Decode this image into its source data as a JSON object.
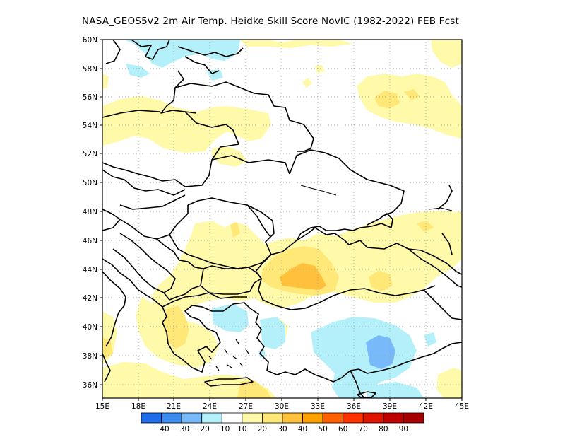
{
  "title": "NASA_GEOS5v2  2m Air Temp. Heidke Skill Score NovIC (1982-2022) FEB Fcst",
  "lat_labels": [
    "60N",
    "58N",
    "56N",
    "54N",
    "52N",
    "50N",
    "48N",
    "46N",
    "44N",
    "42N",
    "40N",
    "38N",
    "36N"
  ],
  "lon_labels": [
    "15E",
    "18E",
    "21E",
    "24E",
    "27E",
    "30E",
    "33E",
    "36E",
    "39E",
    "42E",
    "45E"
  ],
  "colorbar": {
    "labels": [
      "-40",
      "-30",
      "-20",
      "-10",
      "10",
      "20",
      "30",
      "40",
      "50",
      "60",
      "70",
      "80",
      "90"
    ],
    "colors": [
      "#1e6eeb",
      "#3c8cf0",
      "#78b9fa",
      "#b4f0fa",
      "#ffffff",
      "#fffaaa",
      "#ffe878",
      "#ffc03c",
      "#ffa000",
      "#ff6000",
      "#ff3200",
      "#e11400",
      "#c00000",
      "#a50000"
    ]
  },
  "colors": {
    "pale_yellow": "#fffaaa",
    "yellow": "#ffe878",
    "orange": "#ffc03c",
    "light_cyan": "#b4f0fa",
    "light_blue": "#78b9fa"
  }
}
